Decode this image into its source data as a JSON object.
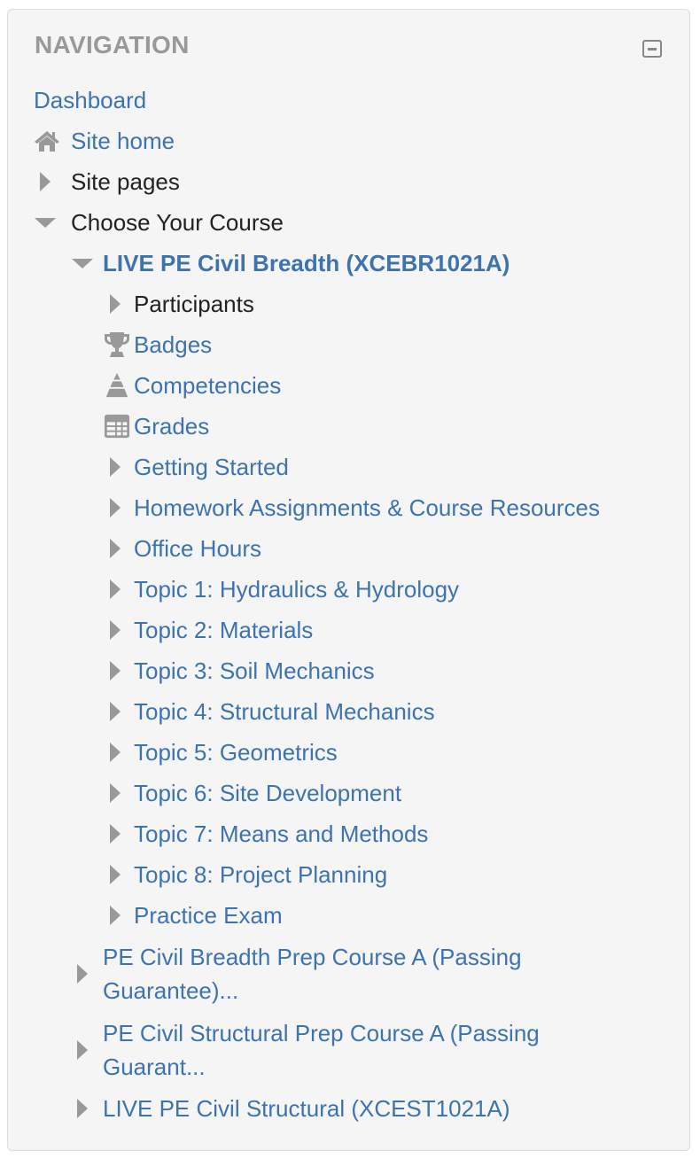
{
  "block": {
    "title": "NAVIGATION",
    "collapse_icon": "minus-square-icon"
  },
  "colors": {
    "link": "#3d74b0",
    "text": "#222222",
    "icon": "#999999",
    "background": "#f5f5f5"
  },
  "items": [
    {
      "label": "Dashboard",
      "level": 0,
      "icon": "none",
      "link": true
    },
    {
      "label": "Site home",
      "level": 0,
      "icon": "home-icon",
      "link": true
    },
    {
      "label": "Site pages",
      "level": 0,
      "icon": "caret-right-icon",
      "link": false
    },
    {
      "label": "Choose Your Course",
      "level": 0,
      "icon": "caret-down-icon",
      "link": false
    },
    {
      "label": "LIVE PE Civil Breadth (XCEBR1021A)",
      "level": 1,
      "icon": "caret-down-icon",
      "link": true,
      "bold": true
    },
    {
      "label": "Participants",
      "level": 2,
      "icon": "caret-right-icon",
      "link": false
    },
    {
      "label": "Badges",
      "level": 2,
      "icon": "trophy-icon",
      "link": true
    },
    {
      "label": "Competencies",
      "level": 2,
      "icon": "pyramid-icon",
      "link": true
    },
    {
      "label": "Grades",
      "level": 2,
      "icon": "table-icon",
      "link": true
    },
    {
      "label": "Getting Started",
      "level": 2,
      "icon": "caret-right-icon",
      "link": true
    },
    {
      "label": "Homework Assignments & Course Resources",
      "level": 2,
      "icon": "caret-right-icon",
      "link": true
    },
    {
      "label": "Office Hours",
      "level": 2,
      "icon": "caret-right-icon",
      "link": true
    },
    {
      "label": "Topic 1: Hydraulics & Hydrology",
      "level": 2,
      "icon": "caret-right-icon",
      "link": true
    },
    {
      "label": "Topic 2: Materials",
      "level": 2,
      "icon": "caret-right-icon",
      "link": true
    },
    {
      "label": "Topic 3: Soil Mechanics",
      "level": 2,
      "icon": "caret-right-icon",
      "link": true
    },
    {
      "label": "Topic 4: Structural Mechanics",
      "level": 2,
      "icon": "caret-right-icon",
      "link": true
    },
    {
      "label": "Topic 5: Geometrics",
      "level": 2,
      "icon": "caret-right-icon",
      "link": true
    },
    {
      "label": "Topic 6: Site Development",
      "level": 2,
      "icon": "caret-right-icon",
      "link": true
    },
    {
      "label": "Topic 7: Means and Methods",
      "level": 2,
      "icon": "caret-right-icon",
      "link": true
    },
    {
      "label": "Topic 8: Project Planning",
      "level": 2,
      "icon": "caret-right-icon",
      "link": true
    },
    {
      "label": "Practice Exam",
      "level": 2,
      "icon": "caret-right-icon",
      "link": true
    },
    {
      "label": "PE Civil Breadth Prep Course A (Passing Guarantee)...",
      "level": 1,
      "icon": "caret-right-icon",
      "link": true,
      "multi": true
    },
    {
      "label": "PE Civil Structural Prep Course A (Passing Guarant...",
      "level": 1,
      "icon": "caret-right-icon",
      "link": true,
      "multi": true
    },
    {
      "label": "LIVE PE Civil Structural (XCEST1021A)",
      "level": 1,
      "icon": "caret-right-icon",
      "link": true
    }
  ]
}
